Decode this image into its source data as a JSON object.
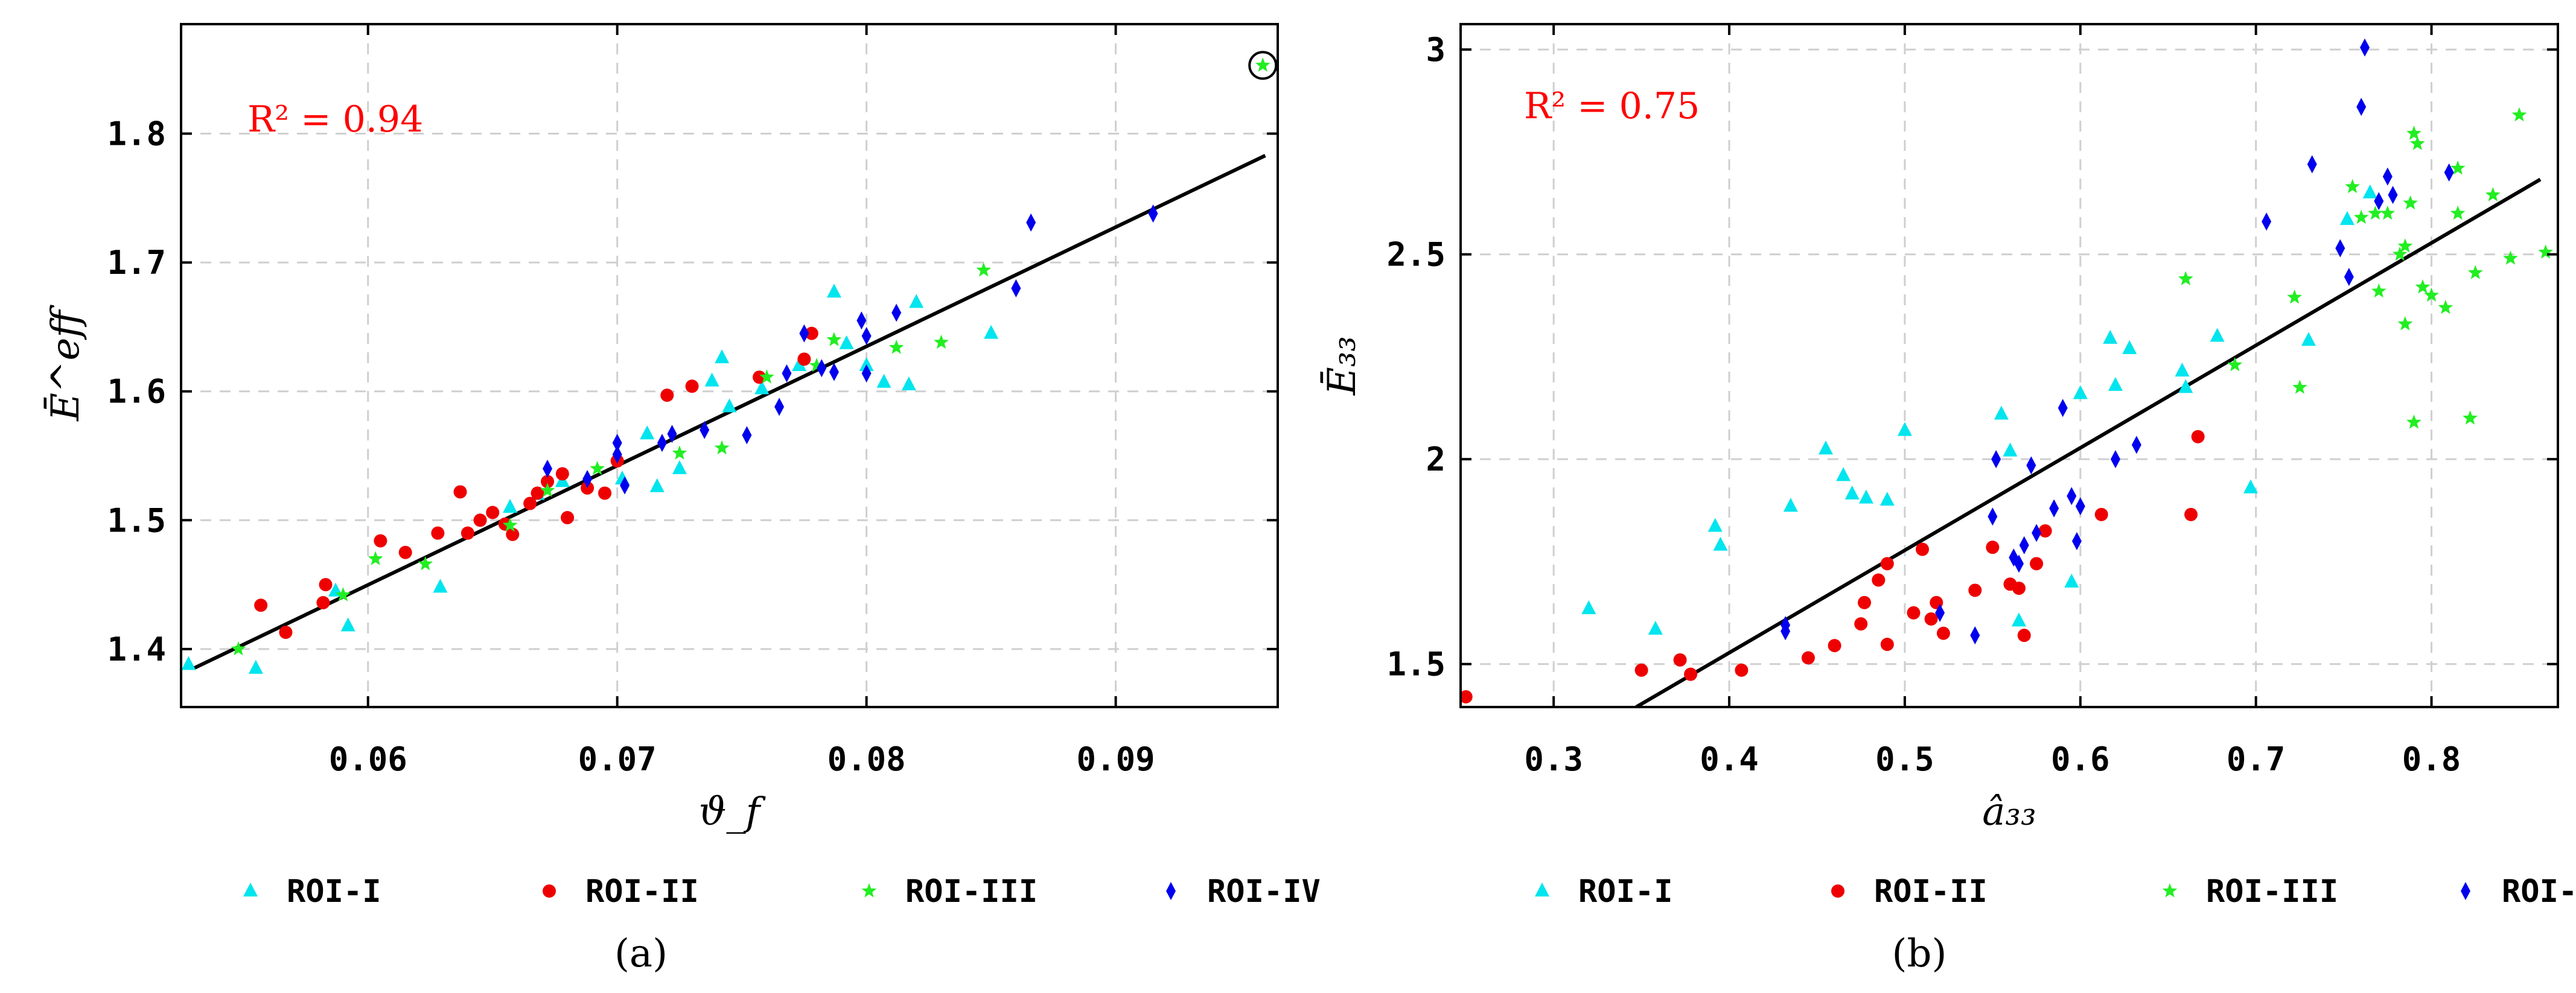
{
  "chart_data": [
    {
      "type": "scatter",
      "panel_label": "(a)",
      "xlabel": "ϑ_f",
      "ylabel": "Ē^eff",
      "annotation": "R² = 0.94",
      "xlim": [
        0.0525,
        0.0965
      ],
      "ylim": [
        1.355,
        1.885
      ],
      "xticks": [
        "0.06",
        "0.07",
        "0.08",
        "0.09"
      ],
      "xtick_values": [
        0.06,
        0.07,
        0.08,
        0.09
      ],
      "yticks": [
        "1.4",
        "1.5",
        "1.6",
        "1.7",
        "1.8"
      ],
      "ytick_values": [
        1.4,
        1.5,
        1.6,
        1.7,
        1.8
      ],
      "grid": true,
      "fit_line": {
        "x": [
          0.053,
          0.096
        ],
        "y": [
          1.385,
          1.783
        ]
      },
      "highlighted_point": {
        "x": 0.0959,
        "y": 1.853
      },
      "series": [
        {
          "name": "ROI-I",
          "color": "#00e5ee",
          "marker": "triangle",
          "points": [
            [
              0.0528,
              1.388
            ],
            [
              0.0555,
              1.385
            ],
            [
              0.0587,
              1.445
            ],
            [
              0.0592,
              1.418
            ],
            [
              0.0629,
              1.448
            ],
            [
              0.0657,
              1.51
            ],
            [
              0.0668,
              1.52
            ],
            [
              0.0678,
              1.53
            ],
            [
              0.0702,
              1.532
            ],
            [
              0.0712,
              1.567
            ],
            [
              0.0716,
              1.526
            ],
            [
              0.0725,
              1.54
            ],
            [
              0.0738,
              1.608
            ],
            [
              0.0742,
              1.626
            ],
            [
              0.0745,
              1.588
            ],
            [
              0.0758,
              1.602
            ],
            [
              0.0773,
              1.62
            ],
            [
              0.0787,
              1.677
            ],
            [
              0.0792,
              1.637
            ],
            [
              0.08,
              1.62
            ],
            [
              0.0807,
              1.607
            ],
            [
              0.0817,
              1.605
            ],
            [
              0.082,
              1.669
            ],
            [
              0.085,
              1.645
            ]
          ]
        },
        {
          "name": "ROI-II",
          "color": "#ee0000",
          "marker": "circle",
          "points": [
            [
              0.0557,
              1.434
            ],
            [
              0.0567,
              1.413
            ],
            [
              0.0582,
              1.436
            ],
            [
              0.0583,
              1.45
            ],
            [
              0.0605,
              1.484
            ],
            [
              0.0615,
              1.475
            ],
            [
              0.0628,
              1.49
            ],
            [
              0.0637,
              1.522
            ],
            [
              0.064,
              1.49
            ],
            [
              0.0645,
              1.5
            ],
            [
              0.065,
              1.506
            ],
            [
              0.0655,
              1.497
            ],
            [
              0.0658,
              1.489
            ],
            [
              0.0665,
              1.513
            ],
            [
              0.0668,
              1.521
            ],
            [
              0.0672,
              1.53
            ],
            [
              0.0678,
              1.536
            ],
            [
              0.068,
              1.502
            ],
            [
              0.0688,
              1.525
            ],
            [
              0.0695,
              1.521
            ],
            [
              0.07,
              1.546
            ],
            [
              0.072,
              1.597
            ],
            [
              0.073,
              1.604
            ],
            [
              0.0757,
              1.611
            ],
            [
              0.0775,
              1.625
            ],
            [
              0.0778,
              1.645
            ]
          ]
        },
        {
          "name": "ROI-III",
          "color": "#22ee22",
          "marker": "star",
          "points": [
            [
              0.0548,
              1.4
            ],
            [
              0.059,
              1.442
            ],
            [
              0.0603,
              1.47
            ],
            [
              0.0623,
              1.466
            ],
            [
              0.0657,
              1.496
            ],
            [
              0.0672,
              1.523
            ],
            [
              0.0692,
              1.54
            ],
            [
              0.0725,
              1.552
            ],
            [
              0.0742,
              1.556
            ],
            [
              0.076,
              1.611
            ],
            [
              0.078,
              1.62
            ],
            [
              0.0787,
              1.64
            ],
            [
              0.0812,
              1.634
            ],
            [
              0.083,
              1.638
            ],
            [
              0.0847,
              1.694
            ],
            [
              0.0959,
              1.853
            ]
          ]
        },
        {
          "name": "ROI-IV",
          "color": "#0000ee",
          "marker": "diamond",
          "points": [
            [
              0.0672,
              1.54
            ],
            [
              0.0688,
              1.532
            ],
            [
              0.07,
              1.551
            ],
            [
              0.07,
              1.56
            ],
            [
              0.0703,
              1.527
            ],
            [
              0.0718,
              1.56
            ],
            [
              0.0722,
              1.567
            ],
            [
              0.0735,
              1.57
            ],
            [
              0.0752,
              1.566
            ],
            [
              0.0765,
              1.588
            ],
            [
              0.0768,
              1.614
            ],
            [
              0.0775,
              1.645
            ],
            [
              0.0782,
              1.618
            ],
            [
              0.0787,
              1.615
            ],
            [
              0.0798,
              1.655
            ],
            [
              0.08,
              1.643
            ],
            [
              0.0812,
              1.661
            ],
            [
              0.08,
              1.614
            ],
            [
              0.086,
              1.68
            ],
            [
              0.0866,
              1.731
            ],
            [
              0.0915,
              1.738
            ]
          ]
        }
      ]
    },
    {
      "type": "scatter",
      "panel_label": "(b)",
      "xlabel": "â₃₃",
      "ylabel": "Ē₃₃",
      "annotation": "R² = 0.75",
      "xlim": [
        0.247,
        0.872
      ],
      "ylim": [
        1.395,
        3.062
      ],
      "xticks": [
        "0.3",
        "0.4",
        "0.5",
        "0.6",
        "0.7",
        "0.8"
      ],
      "xtick_values": [
        0.3,
        0.4,
        0.5,
        0.6,
        0.7,
        0.8
      ],
      "yticks": [
        "1.5",
        "2",
        "2.5",
        "3"
      ],
      "ytick_values": [
        1.5,
        2.0,
        2.5,
        3.0
      ],
      "grid": true,
      "fit_line": {
        "x": [
          0.347,
          0.862
        ],
        "y": [
          1.395,
          2.683
        ]
      },
      "series": [
        {
          "name": "ROI-I",
          "color": "#00e5ee",
          "marker": "triangle",
          "points": [
            [
              0.32,
              1.635
            ],
            [
              0.358,
              1.585
            ],
            [
              0.392,
              1.836
            ],
            [
              0.395,
              1.79
            ],
            [
              0.435,
              1.885
            ],
            [
              0.455,
              2.025
            ],
            [
              0.465,
              1.96
            ],
            [
              0.47,
              1.915
            ],
            [
              0.478,
              1.905
            ],
            [
              0.49,
              1.9
            ],
            [
              0.5,
              2.07
            ],
            [
              0.555,
              2.11
            ],
            [
              0.56,
              2.02
            ],
            [
              0.565,
              1.605
            ],
            [
              0.595,
              1.7
            ],
            [
              0.6,
              2.16
            ],
            [
              0.617,
              2.295
            ],
            [
              0.62,
              2.18
            ],
            [
              0.628,
              2.27
            ],
            [
              0.658,
              2.215
            ],
            [
              0.66,
              2.175
            ],
            [
              0.678,
              2.3
            ],
            [
              0.697,
              1.93
            ],
            [
              0.73,
              2.29
            ],
            [
              0.752,
              2.585
            ],
            [
              0.765,
              2.65
            ]
          ]
        },
        {
          "name": "ROI-II",
          "color": "#ee0000",
          "marker": "circle",
          "points": [
            [
              0.25,
              1.42
            ],
            [
              0.35,
              1.485
            ],
            [
              0.372,
              1.51
            ],
            [
              0.378,
              1.475
            ],
            [
              0.407,
              1.485
            ],
            [
              0.445,
              1.515
            ],
            [
              0.46,
              1.545
            ],
            [
              0.475,
              1.598
            ],
            [
              0.477,
              1.65
            ],
            [
              0.485,
              1.705
            ],
            [
              0.49,
              1.745
            ],
            [
              0.49,
              1.548
            ],
            [
              0.505,
              1.625
            ],
            [
              0.51,
              1.78
            ],
            [
              0.515,
              1.61
            ],
            [
              0.518,
              1.65
            ],
            [
              0.522,
              1.575
            ],
            [
              0.54,
              1.68
            ],
            [
              0.55,
              1.785
            ],
            [
              0.56,
              1.695
            ],
            [
              0.565,
              1.685
            ],
            [
              0.568,
              1.57
            ],
            [
              0.575,
              1.745
            ],
            [
              0.58,
              1.825
            ],
            [
              0.612,
              1.865
            ],
            [
              0.663,
              1.865
            ],
            [
              0.667,
              2.055
            ]
          ]
        },
        {
          "name": "ROI-III",
          "color": "#22ee22",
          "marker": "star",
          "points": [
            [
              0.66,
              2.44
            ],
            [
              0.688,
              2.23
            ],
            [
              0.722,
              2.395
            ],
            [
              0.725,
              2.175
            ],
            [
              0.755,
              2.665
            ],
            [
              0.76,
              2.59
            ],
            [
              0.768,
              2.6
            ],
            [
              0.77,
              2.41
            ],
            [
              0.775,
              2.6
            ],
            [
              0.782,
              2.5
            ],
            [
              0.785,
              2.52
            ],
            [
              0.785,
              2.33
            ],
            [
              0.79,
              2.795
            ],
            [
              0.792,
              2.77
            ],
            [
              0.795,
              2.42
            ],
            [
              0.8,
              2.4
            ],
            [
              0.808,
              2.37
            ],
            [
              0.815,
              2.6
            ],
            [
              0.815,
              2.71
            ],
            [
              0.822,
              2.1
            ],
            [
              0.825,
              2.455
            ],
            [
              0.835,
              2.645
            ],
            [
              0.845,
              2.49
            ],
            [
              0.85,
              2.84
            ],
            [
              0.865,
              2.505
            ],
            [
              0.79,
              2.09
            ],
            [
              0.788,
              2.625
            ]
          ]
        },
        {
          "name": "ROI-IV",
          "color": "#0000ee",
          "marker": "diamond",
          "points": [
            [
              0.432,
              1.58
            ],
            [
              0.432,
              1.595
            ],
            [
              0.52,
              1.625
            ],
            [
              0.54,
              1.57
            ],
            [
              0.55,
              1.86
            ],
            [
              0.552,
              2.0
            ],
            [
              0.562,
              1.76
            ],
            [
              0.565,
              1.745
            ],
            [
              0.568,
              1.79
            ],
            [
              0.572,
              1.985
            ],
            [
              0.575,
              1.82
            ],
            [
              0.585,
              1.88
            ],
            [
              0.59,
              2.125
            ],
            [
              0.595,
              1.91
            ],
            [
              0.598,
              1.8
            ],
            [
              0.6,
              1.885
            ],
            [
              0.62,
              2.0
            ],
            [
              0.632,
              2.035
            ],
            [
              0.706,
              2.58
            ],
            [
              0.732,
              2.72
            ],
            [
              0.748,
              2.515
            ],
            [
              0.753,
              2.445
            ],
            [
              0.76,
              2.86
            ],
            [
              0.77,
              2.63
            ],
            [
              0.775,
              2.69
            ],
            [
              0.778,
              2.645
            ],
            [
              0.81,
              2.7
            ],
            [
              0.762,
              3.005
            ]
          ]
        }
      ]
    }
  ]
}
